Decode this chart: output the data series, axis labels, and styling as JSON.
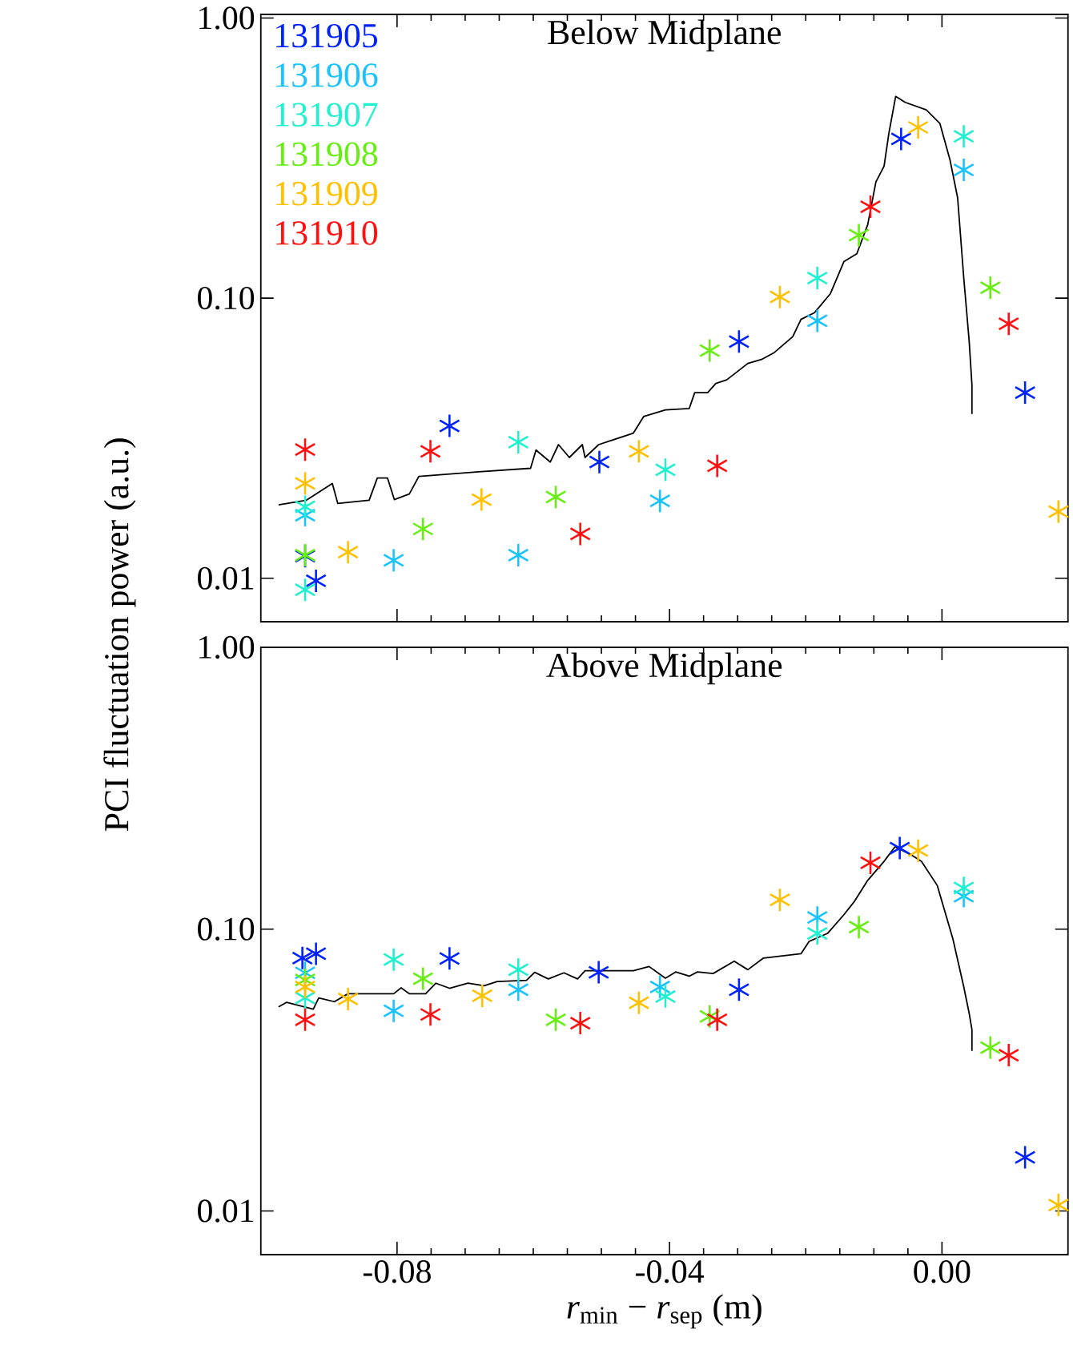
{
  "chart_data": [
    {
      "type": "scatter",
      "title": "Below Midplane",
      "ylabel": "PCI fluctuation power (a.u.)",
      "log": "y",
      "marker": "cross",
      "legend": "top left",
      "tick_labels": "y",
      "xlim": [
        -0.1,
        0.0185
      ],
      "ylim": [
        0.007,
        1.03
      ],
      "xticks": [
        {
          "value": -0.08,
          "label": null
        },
        {
          "value": -0.04,
          "label": null
        },
        {
          "value": 0.0,
          "label": null
        }
      ],
      "yticks": [
        {
          "value": 0.01,
          "label": "0.01"
        },
        {
          "value": 0.1,
          "label": "0.10"
        },
        {
          "value": 1.0,
          "label": "1.00"
        }
      ],
      "series": [
        {
          "name": "131905",
          "color": "#0022ff",
          "x": [
            -0.0935,
            -0.0919,
            -0.0723,
            -0.0503,
            -0.0298,
            -0.006,
            0.0122
          ],
          "values": [
            0.012,
            0.0098,
            0.035,
            0.026,
            0.07,
            0.37,
            0.046
          ]
        },
        {
          "name": "131906",
          "color": "#19c3ff",
          "x": [
            -0.0935,
            -0.0805,
            -0.0622,
            -0.0414,
            -0.0183,
            0.0032
          ],
          "values": [
            0.0168,
            0.0116,
            0.0121,
            0.0189,
            0.083,
            0.287
          ]
        },
        {
          "name": "131907",
          "color": "#1ef0d0",
          "x": [
            -0.0935,
            -0.0935,
            -0.0622,
            -0.0406,
            -0.0183,
            0.0032
          ],
          "values": [
            0.0091,
            0.018,
            0.0306,
            0.0244,
            0.118,
            0.378
          ]
        },
        {
          "name": "131908",
          "color": "#66ee11",
          "x": [
            -0.0935,
            -0.0762,
            -0.0567,
            -0.0341,
            -0.0122,
            0.0071
          ],
          "values": [
            0.0121,
            0.015,
            0.0195,
            0.065,
            0.168,
            0.109
          ]
        },
        {
          "name": "131909",
          "color": "#ffc000",
          "x": [
            -0.0935,
            -0.0872,
            -0.0676,
            -0.0445,
            -0.0238,
            -0.0035,
            0.0171
          ],
          "values": [
            0.0218,
            0.0124,
            0.0191,
            0.0284,
            0.101,
            0.407,
            0.0173
          ]
        },
        {
          "name": "131910",
          "color": "#ff1010",
          "x": [
            -0.0935,
            -0.0751,
            -0.0531,
            -0.033,
            -0.0105,
            0.0098
          ],
          "values": [
            0.0288,
            0.0284,
            0.0144,
            0.0252,
            0.212,
            0.081
          ]
        },
        {
          "type": "line",
          "marker": "none",
          "color": "#000000",
          "x": [
            -0.0974,
            -0.0933,
            -0.0895,
            -0.0887,
            -0.0841,
            -0.0829,
            -0.0814,
            -0.0804,
            -0.0782,
            -0.0768,
            -0.068,
            -0.0604,
            -0.0596,
            -0.0575,
            -0.0563,
            -0.0547,
            -0.0528,
            -0.0524,
            -0.0504,
            -0.0453,
            -0.0438,
            -0.0406,
            -0.0371,
            -0.0363,
            -0.0344,
            -0.0332,
            -0.0316,
            -0.0285,
            -0.0265,
            -0.0246,
            -0.0219,
            -0.0207,
            -0.0187,
            -0.0164,
            -0.0144,
            -0.0125,
            -0.0109,
            -0.0097,
            -0.0085,
            -0.0078,
            -0.0068,
            -0.0054,
            -0.0023,
            -0.0003,
            0.0012,
            0.0023,
            0.0032,
            0.004,
            0.0044,
            0.0044
          ],
          "values": [
            0.0183,
            0.019,
            0.0218,
            0.0185,
            0.019,
            0.0228,
            0.0228,
            0.0191,
            0.02,
            0.0231,
            0.024,
            0.0247,
            0.0287,
            0.026,
            0.03,
            0.027,
            0.03,
            0.027,
            0.03,
            0.033,
            0.0378,
            0.0399,
            0.0404,
            0.046,
            0.046,
            0.0496,
            0.0511,
            0.0585,
            0.0604,
            0.064,
            0.0729,
            0.084,
            0.0888,
            0.1036,
            0.135,
            0.144,
            0.183,
            0.26,
            0.296,
            0.387,
            0.525,
            0.5,
            0.47,
            0.42,
            0.31,
            0.228,
            0.118,
            0.07,
            0.049,
            0.0386
          ]
        }
      ]
    },
    {
      "type": "scatter",
      "title": "Above Midplane",
      "xlabel": "*r*$_{min}$ − *r*$_{sep}$ (m)",
      "log": "y",
      "marker": "cross",
      "xlim": [
        -0.1,
        0.0185
      ],
      "ylim": [
        0.007,
        1.0
      ],
      "xticks": [
        {
          "value": -0.08,
          "label": "-0.08"
        },
        {
          "value": -0.04,
          "label": "-0.04"
        },
        {
          "value": 0.0,
          "label": "0.00"
        }
      ],
      "yticks": [
        {
          "value": 0.01,
          "label": "0.01"
        },
        {
          "value": 0.1,
          "label": "0.10"
        },
        {
          "value": 1.0,
          "label": "1.00"
        }
      ],
      "series": [
        {
          "color": "#0022ff",
          "x": [
            -0.0939,
            -0.0919,
            -0.0723,
            -0.0504,
            -0.0298,
            -0.0062,
            0.0122
          ],
          "values": [
            0.079,
            0.0818,
            0.0787,
            0.0703,
            0.061,
            0.194,
            0.0155
          ]
        },
        {
          "color": "#19c3ff",
          "x": [
            -0.0935,
            -0.0805,
            -0.0622,
            -0.0414,
            -0.0183,
            0.0032
          ],
          "values": [
            0.07,
            0.0513,
            0.061,
            0.0624,
            0.11,
            0.131
          ]
        },
        {
          "color": "#1ef0d0",
          "x": [
            -0.0935,
            -0.0805,
            -0.0622,
            -0.0406,
            -0.0183,
            0.0032
          ],
          "values": [
            0.057,
            0.078,
            0.0718,
            0.0577,
            0.0966,
            0.14
          ]
        },
        {
          "color": "#66ee11",
          "x": [
            -0.0935,
            -0.0762,
            -0.0567,
            -0.0341,
            -0.0122,
            0.0071
          ],
          "values": [
            0.066,
            0.0667,
            0.0477,
            0.049,
            0.1017,
            0.038
          ]
        },
        {
          "color": "#ffc000",
          "x": [
            -0.0935,
            -0.0872,
            -0.0675,
            -0.0445,
            -0.0238,
            -0.0035,
            0.0171
          ],
          "values": [
            0.0624,
            0.0565,
            0.058,
            0.0548,
            0.127,
            0.19,
            0.0105
          ]
        },
        {
          "color": "#ff1010",
          "x": [
            -0.0935,
            -0.0751,
            -0.0531,
            -0.033,
            -0.0105,
            0.0098
          ],
          "values": [
            0.0477,
            0.0498,
            0.0464,
            0.0477,
            0.172,
            0.0357
          ]
        },
        {
          "type": "line",
          "marker": "none",
          "color": "#000000",
          "x": [
            -0.0974,
            -0.0962,
            -0.0923,
            -0.0915,
            -0.0892,
            -0.0872,
            -0.0805,
            -0.0794,
            -0.0782,
            -0.0758,
            -0.0743,
            -0.0723,
            -0.0696,
            -0.0672,
            -0.0653,
            -0.061,
            -0.0598,
            -0.0578,
            -0.0555,
            -0.0535,
            -0.0524,
            -0.0453,
            -0.043,
            -0.0406,
            -0.0391,
            -0.0371,
            -0.0359,
            -0.0336,
            -0.0305,
            -0.0285,
            -0.0262,
            -0.0207,
            -0.0195,
            -0.0168,
            -0.0144,
            -0.0129,
            -0.0109,
            -0.0085,
            -0.0069,
            -0.0046,
            -0.003,
            -0.0007,
            0.0016,
            0.0032,
            0.004,
            0.0044,
            0.0044
          ],
          "values": [
            0.053,
            0.055,
            0.052,
            0.057,
            0.0553,
            0.059,
            0.059,
            0.0619,
            0.059,
            0.059,
            0.0643,
            0.0617,
            0.0643,
            0.063,
            0.0652,
            0.0658,
            0.0703,
            0.0666,
            0.07,
            0.0666,
            0.0712,
            0.0712,
            0.0737,
            0.067,
            0.0705,
            0.0681,
            0.0705,
            0.0696,
            0.077,
            0.0718,
            0.079,
            0.0818,
            0.0905,
            0.0966,
            0.1125,
            0.125,
            0.149,
            0.174,
            0.196,
            0.184,
            0.174,
            0.143,
            0.0924,
            0.0624,
            0.0502,
            0.044,
            0.037
          ]
        }
      ]
    }
  ]
}
